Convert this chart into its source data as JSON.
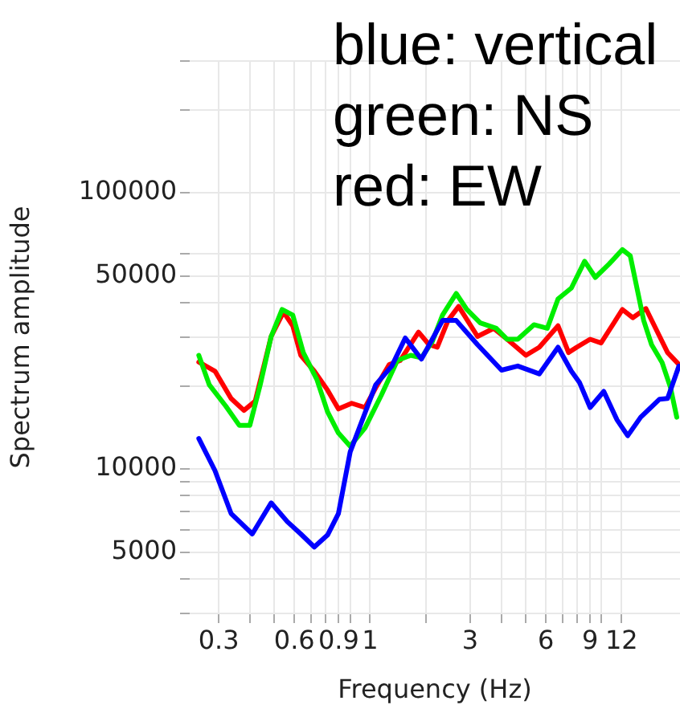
{
  "chart_data": {
    "type": "line",
    "xlabel": "Frequency (Hz)",
    "ylabel": "Spectrum amplitude",
    "log": "xy",
    "grid": true,
    "marker": "none",
    "line_style": "solid",
    "annotations": [
      "blue: vertical",
      "green: NS",
      "red: EW"
    ],
    "xlim": [
      0.23,
      20.5
    ],
    "ylim": [
      3000,
      300000
    ],
    "xticks": [
      {
        "value": 0.3,
        "label": "0.3"
      },
      {
        "value": 0.4,
        "label": null
      },
      {
        "value": 0.5,
        "label": null
      },
      {
        "value": 0.6,
        "label": "0.6"
      },
      {
        "value": 0.7,
        "label": null
      },
      {
        "value": 0.8,
        "label": null
      },
      {
        "value": 0.9,
        "label": "0.9"
      },
      {
        "value": 1,
        "label": null
      },
      {
        "value": 1.2,
        "label": "1"
      },
      {
        "value": 2,
        "label": null
      },
      {
        "value": 3,
        "label": "3"
      },
      {
        "value": 4,
        "label": null
      },
      {
        "value": 5,
        "label": null
      },
      {
        "value": 6,
        "label": "6"
      },
      {
        "value": 7,
        "label": null
      },
      {
        "value": 8,
        "label": null
      },
      {
        "value": 9,
        "label": "9"
      },
      {
        "value": 10,
        "label": null
      },
      {
        "value": 12,
        "label": "12"
      }
    ],
    "yticks": [
      {
        "value": 3000,
        "label": null
      },
      {
        "value": 4000,
        "label": null
      },
      5000,
      {
        "value": 6000,
        "label": null
      },
      {
        "value": 7000,
        "label": null
      },
      {
        "value": 8000,
        "label": null
      },
      {
        "value": 9000,
        "label": null
      },
      10000,
      {
        "value": 20000,
        "label": null
      },
      {
        "value": 30000,
        "label": null
      },
      {
        "value": 40000,
        "label": null
      },
      50000,
      {
        "value": 60000,
        "label": null
      },
      100000,
      {
        "value": 200000,
        "label": null
      },
      {
        "value": 300000,
        "label": null
      }
    ],
    "series": [
      {
        "color": "#0000ff",
        "x": [
          0.25,
          0.29,
          0.336,
          0.408,
          0.485,
          0.562,
          0.636,
          0.72,
          0.813,
          0.898,
          1.0,
          1.264,
          1.464,
          1.656,
          1.92,
          2.33,
          2.64,
          3.21,
          4.0,
          4.64,
          5.65,
          6.71,
          7.58,
          8.16,
          9.0,
          10.2,
          11.5,
          12.7,
          14.3,
          17.0,
          18.3,
          20.3
        ],
        "values": [
          12900,
          9860,
          6900,
          5820,
          7540,
          6450,
          5820,
          5220,
          5770,
          6900,
          11530,
          20200,
          23600,
          29800,
          25000,
          34500,
          34500,
          28200,
          22800,
          23600,
          22100,
          27600,
          22600,
          20600,
          16700,
          19100,
          15100,
          13200,
          15400,
          17900,
          18000,
          23600
        ]
      },
      {
        "color": "#00ee00",
        "x": [
          0.25,
          0.275,
          0.32,
          0.362,
          0.399,
          0.439,
          0.485,
          0.536,
          0.591,
          0.651,
          0.737,
          0.813,
          0.898,
          1.0,
          1.146,
          1.33,
          1.54,
          1.74,
          1.92,
          2.12,
          2.33,
          2.64,
          2.91,
          3.29,
          3.81,
          4.21,
          4.64,
          5.38,
          6.08,
          6.71,
          7.58,
          8.56,
          9.44,
          10.7,
          12.1,
          13.0,
          14.7,
          15.8,
          17.4,
          18.8,
          19.9
        ],
        "values": [
          25800,
          20200,
          16900,
          14400,
          14400,
          20200,
          30200,
          37800,
          36100,
          26400,
          21100,
          16100,
          13500,
          12100,
          14100,
          18500,
          24700,
          25800,
          25300,
          28900,
          36100,
          43200,
          37800,
          33800,
          32300,
          29500,
          29500,
          33300,
          32300,
          41300,
          45200,
          56500,
          49400,
          55200,
          62300,
          59100,
          34500,
          28200,
          24300,
          19700,
          15400
        ]
      },
      {
        "color": "#ff0000",
        "x": [
          0.25,
          0.29,
          0.336,
          0.378,
          0.419,
          0.485,
          0.543,
          0.591,
          0.636,
          0.72,
          0.813,
          0.898,
          1.014,
          1.146,
          1.264,
          1.43,
          1.58,
          1.87,
          2.06,
          2.22,
          2.45,
          2.7,
          3.21,
          3.72,
          4.21,
          5.0,
          5.65,
          6.71,
          7.39,
          7.96,
          9.0,
          9.95,
          12.1,
          13.3,
          15.0,
          16.6,
          18.3,
          20.3
        ],
        "values": [
          24400,
          22600,
          18000,
          16300,
          17600,
          30200,
          37000,
          33000,
          25800,
          22600,
          19300,
          16500,
          17300,
          16700,
          19700,
          23900,
          24700,
          31300,
          28200,
          27600,
          34500,
          38800,
          30200,
          32300,
          29500,
          25800,
          27600,
          33000,
          26400,
          27600,
          29500,
          28600,
          37800,
          35300,
          38100,
          31600,
          26400,
          23900
        ]
      }
    ]
  }
}
